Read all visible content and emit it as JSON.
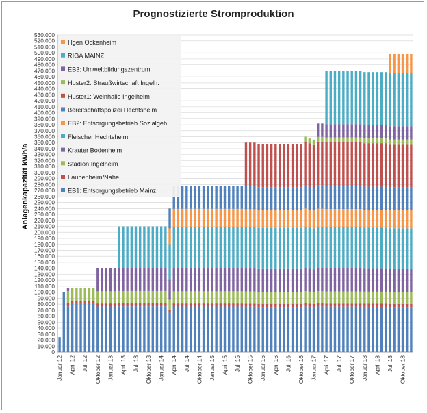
{
  "chart_data": {
    "type": "bar",
    "stacked": true,
    "title": "Prognostizierte Stromproduktion",
    "xlabel": "",
    "ylabel": "Anlagenkapazität kWh/a",
    "ylim": [
      0,
      530000
    ],
    "ytick_step": 10000,
    "yticks": [
      "0",
      "10.000",
      "20.000",
      "30.000",
      "40.000",
      "50.000",
      "60.000",
      "70.000",
      "80.000",
      "90.000",
      "100.000",
      "110.000",
      "120.000",
      "130.000",
      "140.000",
      "150.000",
      "160.000",
      "170.000",
      "180.000",
      "190.000",
      "200.000",
      "210.000",
      "220.000",
      "230.000",
      "240.000",
      "250.000",
      "260.000",
      "270.000",
      "280.000",
      "290.000",
      "300.000",
      "310.000",
      "320.000",
      "330.000",
      "340.000",
      "350.000",
      "360.000",
      "370.000",
      "380.000",
      "390.000",
      "400.000",
      "410.000",
      "420.000",
      "430.000",
      "440.000",
      "450.000",
      "460.000",
      "470.000",
      "480.000",
      "490.000",
      "500.000",
      "510.000",
      "520.000",
      "530.000"
    ],
    "grid": true,
    "legend_position": "top-left",
    "months": [
      "Jan 12",
      "Feb 12",
      "Mär 12",
      "Apr 12",
      "Mai 12",
      "Jun 12",
      "Jul 12",
      "Aug 12",
      "Sep 12",
      "Okt 12",
      "Nov 12",
      "Dez 12",
      "Jan 13",
      "Feb 13",
      "Mär 13",
      "Apr 13",
      "Mai 13",
      "Jun 13",
      "Jul 13",
      "Aug 13",
      "Sep 13",
      "Okt 13",
      "Nov 13",
      "Dez 13",
      "Jan 14",
      "Feb 14",
      "Mär 14",
      "Apr 14",
      "Mai 14",
      "Jun 14",
      "Jul 14",
      "Aug 14",
      "Sep 14",
      "Okt 14",
      "Nov 14",
      "Dez 14",
      "Jan 15",
      "Feb 15",
      "Mär 15",
      "Apr 15",
      "Mai 15",
      "Jun 15",
      "Jul 15",
      "Aug 15",
      "Sep 15",
      "Okt 15",
      "Nov 15",
      "Dez 15",
      "Jan 16",
      "Feb 16",
      "Mär 16",
      "Apr 16",
      "Mai 16",
      "Jun 16",
      "Jul 16",
      "Aug 16",
      "Sep 16",
      "Okt 16",
      "Nov 16",
      "Dez 16",
      "Jan 17",
      "Feb 17",
      "Mär 17",
      "Apr 17",
      "Mai 17",
      "Jun 17",
      "Jul 17",
      "Aug 17",
      "Sep 17",
      "Okt 17",
      "Nov 17",
      "Dez 17",
      "Jan 18",
      "Feb 18",
      "Mär 18",
      "Apr 18",
      "Mai 18",
      "Jun 18",
      "Jul 18",
      "Aug 18",
      "Sep 18",
      "Okt 18",
      "Nov 18",
      "Dez 18"
    ],
    "xtick_labels": [
      {
        "month_index": 0,
        "label": "Januar 12"
      },
      {
        "month_index": 3,
        "label": "April 12"
      },
      {
        "month_index": 6,
        "label": "Juli 12"
      },
      {
        "month_index": 9,
        "label": "Oktober 12"
      },
      {
        "month_index": 12,
        "label": "Januar 13"
      },
      {
        "month_index": 15,
        "label": "April 13"
      },
      {
        "month_index": 18,
        "label": "Juli 13"
      },
      {
        "month_index": 21,
        "label": "Oktober 13"
      },
      {
        "month_index": 24,
        "label": "Januar 14"
      },
      {
        "month_index": 27,
        "label": "April 14"
      },
      {
        "month_index": 30,
        "label": "Juli 14"
      },
      {
        "month_index": 33,
        "label": "Oktober 14"
      },
      {
        "month_index": 36,
        "label": "Januar 15"
      },
      {
        "month_index": 39,
        "label": "April 15"
      },
      {
        "month_index": 42,
        "label": "Juli 15"
      },
      {
        "month_index": 45,
        "label": "Oktober 15"
      },
      {
        "month_index": 48,
        "label": "Januar 16"
      },
      {
        "month_index": 51,
        "label": "April 16"
      },
      {
        "month_index": 54,
        "label": "Juli 16"
      },
      {
        "month_index": 57,
        "label": "Oktober 16"
      },
      {
        "month_index": 60,
        "label": "Januar 17"
      },
      {
        "month_index": 63,
        "label": "April 17"
      },
      {
        "month_index": 66,
        "label": "Juli 17"
      },
      {
        "month_index": 69,
        "label": "Oktober 17"
      },
      {
        "month_index": 72,
        "label": "Januar 18"
      },
      {
        "month_index": 75,
        "label": "April 18"
      },
      {
        "month_index": 78,
        "label": "Juli 18"
      },
      {
        "month_index": 81,
        "label": "Oktober 18"
      }
    ],
    "series": [
      {
        "name": "EB1: Entsorgungsbetrieb Mainz",
        "color": "#4f81bd",
        "start_month": 0,
        "value": 75000,
        "ramp": [
          {
            "month": 0,
            "value": 20000
          }
        ]
      },
      {
        "name": "Laubenheim/Nahe",
        "color": "#c0504d",
        "start_month": 2,
        "value": 5000
      },
      {
        "name": "Stadion Ingelheim",
        "color": "#9bbb59",
        "start_month": 2,
        "value": 20000
      },
      {
        "name": "Krauter Bodenheim",
        "color": "#8064a2",
        "start_month": 9,
        "value": 38000,
        "extra": [
          {
            "month": 2,
            "value": 5000
          }
        ]
      },
      {
        "name": "Fleischer Hechtsheim",
        "color": "#4bacc6",
        "start_month": 14,
        "value": 68000
      },
      {
        "name": "EB2: Entsorgungsbetrieb Sozialgeb.",
        "color": "#f79646",
        "start_month": 26,
        "value": 30000
      },
      {
        "name": "Bereitschaftspolizei Hechtsheim",
        "color": "#4f81bd",
        "start_month": 26,
        "value": 38000,
        "change": [
          {
            "from_month": 48,
            "value": 38000
          }
        ],
        "stepdown": [
          {
            "from_month": 44,
            "value": 40000
          }
        ]
      },
      {
        "name": "Huster1: Weinhalle Ingelheim",
        "color": "#c0504d",
        "start_month": 44,
        "value": 72000,
        "extra_months": [
          {
            "month": 58,
            "value": 72000
          }
        ]
      },
      {
        "name": "Huster2: Straußwirtschaft Ingelh.",
        "color": "#9bbb59",
        "start_month": 58,
        "value": 8000
      },
      {
        "name": "EB3: Umweltbildungszentrum",
        "color": "#8064a2",
        "start_month": 61,
        "value": 22000
      },
      {
        "name": "RIGA MAINZ",
        "color": "#4bacc6",
        "start_month": 63,
        "value": 88000
      },
      {
        "name": "Illgen Ockenheim",
        "color": "#f79646",
        "start_month": 78,
        "value": 32000
      }
    ],
    "totals": [
      25000,
      100000,
      107000,
      107000,
      107000,
      107000,
      107000,
      107000,
      107000,
      140000,
      140000,
      140000,
      140000,
      140000,
      210000,
      210000,
      210000,
      210000,
      210000,
      210000,
      210000,
      210000,
      210000,
      210000,
      210000,
      210000,
      240000,
      278000,
      278000,
      278000,
      278000,
      278000,
      278000,
      278000,
      278000,
      278000,
      278000,
      278000,
      278000,
      278000,
      278000,
      278000,
      278000,
      278000,
      350000,
      350000,
      350000,
      348000,
      348000,
      348000,
      348000,
      348000,
      348000,
      348000,
      348000,
      348000,
      348000,
      348000,
      360000,
      357000,
      355000,
      382000,
      382000,
      470000,
      470000,
      470000,
      470000,
      470000,
      470000,
      470000,
      470000,
      470000,
      468000,
      468000,
      468000,
      468000,
      468000,
      468000,
      498000,
      498000,
      498000,
      498000,
      498000,
      498000
    ]
  }
}
